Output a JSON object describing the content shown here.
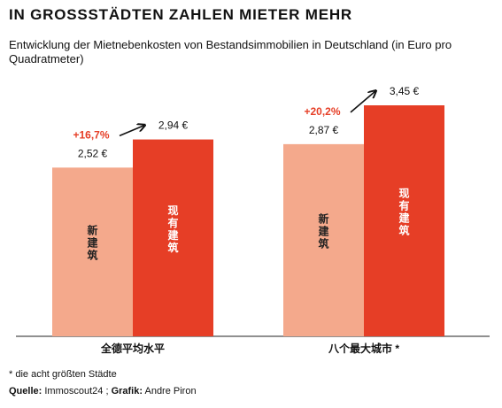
{
  "header": {
    "title": "IN GROSSSTÄDTEN ZAHLEN MIETER MEHR",
    "subtitle": "Entwicklung der Mietnebenkosten von Bestandsimmobilien in Deutschland (in Euro pro Quadratmeter)"
  },
  "chart_data": {
    "type": "bar",
    "categories": [
      "全德平均水平",
      "八个最大城市 *"
    ],
    "series": [
      {
        "name": "新建筑",
        "values": [
          2.52,
          2.87
        ],
        "labels": [
          "2,52 €",
          "2,87 €"
        ],
        "color": "#f4a98c"
      },
      {
        "name": "现有建筑",
        "values": [
          2.94,
          3.45
        ],
        "labels": [
          "2,94 €",
          "3,45 €"
        ],
        "color": "#e63e26"
      }
    ],
    "annotations": [
      "+16,7%",
      "+20,2%"
    ],
    "annotation_color": "#e63e26",
    "ylim": [
      0,
      3.45
    ],
    "grid": false
  },
  "footer": {
    "footnote": "* die acht größten Städte",
    "source_label": "Quelle:",
    "source_text": "Immoscout24 ;",
    "graphic_label": "Grafik:",
    "graphic_text": "Andre Piron"
  }
}
